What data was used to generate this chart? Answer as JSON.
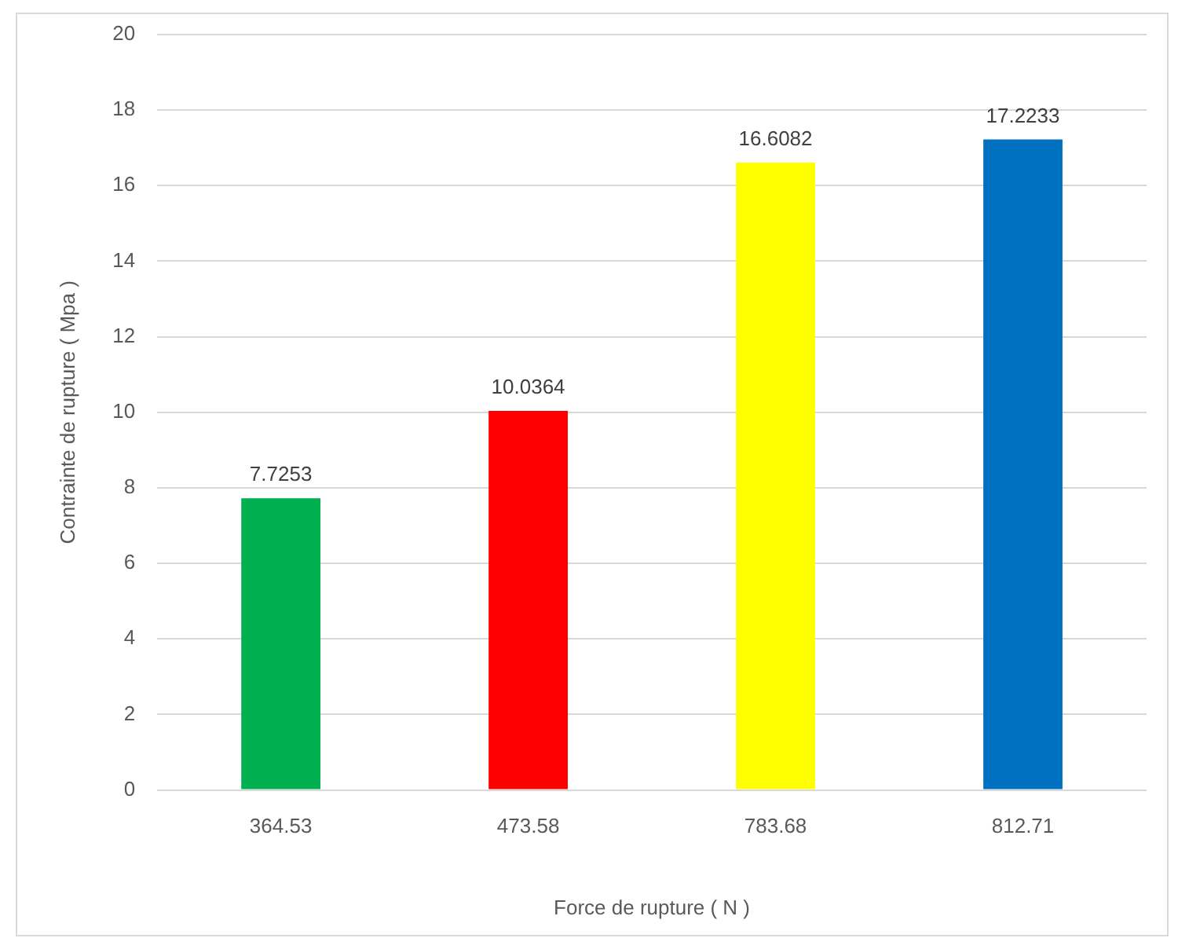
{
  "chart_data": {
    "type": "bar",
    "xlabel": "Force de rupture ( N )",
    "ylabel": "Contrainte de rupture ( Mpa )",
    "categories": [
      "364.53",
      "473.58",
      "783.68",
      "812.71"
    ],
    "values": [
      7.7253,
      10.0364,
      16.6082,
      17.2233
    ],
    "colors": [
      "#00b050",
      "#ff0000",
      "#ffff00",
      "#0070c0"
    ],
    "ylim": [
      0,
      20
    ],
    "yticks": [
      0,
      2,
      4,
      6,
      8,
      10,
      12,
      14,
      16,
      18,
      20
    ],
    "grid": "y",
    "data_labels": true,
    "legend": false
  }
}
